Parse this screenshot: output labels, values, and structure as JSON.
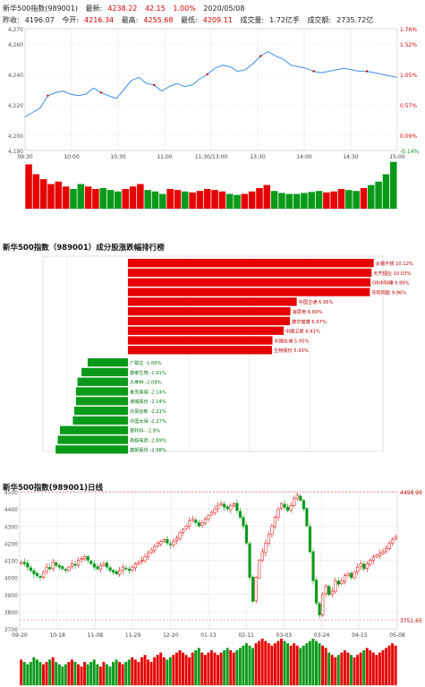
{
  "header": {
    "name": "新华500指数(989001)",
    "latest_label": "最新:",
    "latest_value": "4238.22",
    "change": "42.15",
    "change_pct": "1.00%",
    "date": "2020/05/08",
    "prev_close_label": "昨收:",
    "prev_close": "4196.07",
    "open_label": "今开:",
    "open": "4216.34",
    "high_label": "最高:",
    "high": "4255.68",
    "low_label": "最低:",
    "low": "4209.11",
    "volume_label": "成交量:",
    "volume": "1.72亿手",
    "turnover_label": "成交额:",
    "turnover": "2735.72亿"
  },
  "section_titles": {
    "ranking": "新华500指数（989001）成分股涨跌幅排行榜",
    "daily": "新华500指数(989001)日线"
  },
  "colors": {
    "up": "#e60000",
    "down": "#0a9a1a",
    "line": "#3a8ee6",
    "grid": "#e3e3e3"
  },
  "chart_data": [
    {
      "type": "line",
      "x_labels": [
        "09:30",
        "10:00",
        "10:30",
        "11:00",
        "11:30/13:00",
        "13:30",
        "14:00",
        "14:30",
        "15:00"
      ],
      "ylim": [
        4190,
        4270
      ],
      "y_ticks": [
        "4,270",
        "4,260",
        "4,240",
        "4,220",
        "4,200",
        "4,190"
      ],
      "right_ticks": [
        "1.76%",
        "1.52%",
        "1.05%",
        "0.57%",
        "0.09%",
        "-0.14%"
      ],
      "series": [
        {
          "values": [
            4212,
            4215,
            4218,
            4226,
            4228,
            4229,
            4227,
            4226,
            4227,
            4231,
            4228,
            4226,
            4224,
            4230,
            4236,
            4238,
            4234,
            4233,
            4229,
            4232,
            4234,
            4232,
            4233,
            4237,
            4240,
            4244,
            4246,
            4245,
            4242,
            4243,
            4247,
            4252,
            4255,
            4252,
            4250,
            4246,
            4245,
            4244,
            4242,
            4241,
            4242,
            4243,
            4244,
            4243,
            4242,
            4242,
            4241,
            4240,
            4239,
            4238
          ]
        }
      ],
      "volume": [
        0.9,
        0.7,
        0.6,
        0.5,
        0.55,
        0.45,
        0.4,
        0.5,
        0.45,
        0.4,
        0.42,
        0.38,
        0.35,
        0.4,
        0.45,
        0.5,
        0.38,
        0.35,
        0.3,
        0.4,
        0.38,
        0.35,
        0.33,
        0.36,
        0.4,
        0.38,
        0.35,
        0.3,
        0.28,
        0.3,
        0.35,
        0.42,
        0.48,
        0.36,
        0.32,
        0.3,
        0.3,
        0.32,
        0.34,
        0.36,
        0.33,
        0.35,
        0.4,
        0.38,
        0.36,
        0.42,
        0.48,
        0.55,
        0.7,
        0.95
      ]
    },
    {
      "type": "bar",
      "orientation": "horizontal",
      "gainers": [
        {
          "name": "太钢不锈",
          "pct": 10.12,
          "label": "太钢不锈 10.12%"
        },
        {
          "name": "天齐锂业",
          "pct": 10.03,
          "label": "天齐锂业 10.03%"
        },
        {
          "name": "OR中科曙",
          "pct": 9.99,
          "label": "OR中科曙 9.99%"
        },
        {
          "name": "东阿阿胶",
          "pct": 9.96,
          "label": "东阿阿胶 9.96%"
        },
        {
          "name": "中国卫通",
          "pct": 6.95,
          "label": "中国卫通 6.95%"
        },
        {
          "name": "海思电",
          "pct": 6.69,
          "label": "海思电 6.69%"
        },
        {
          "name": "康华健康",
          "pct": 6.67,
          "label": "康华健康 6.67%"
        },
        {
          "name": "中国卫星",
          "pct": 6.41,
          "label": "中国卫星 6.41%"
        },
        {
          "name": "中国长城",
          "pct": 5.95,
          "label": "中国长城 5.95%"
        },
        {
          "name": "生物股份",
          "pct": 5.93,
          "label": "生物股份 5.93%"
        }
      ],
      "losers": [
        {
          "name": "广联达",
          "pct": -1.66,
          "label": "广联达 -1.66%"
        },
        {
          "name": "康泰生物",
          "pct": -1.91,
          "label": "康泰生物 -1.91%"
        },
        {
          "name": "大参林",
          "pct": -2.08,
          "label": "大参林 -2.08%"
        },
        {
          "name": "麦克奥德",
          "pct": -2.14,
          "label": "麦克奥德 -2.14%"
        },
        {
          "name": "通威股份",
          "pct": -2.14,
          "label": "通威股份 -2.14%"
        },
        {
          "name": "兆易创新",
          "pct": -2.21,
          "label": "兆易创新 -2.21%"
        },
        {
          "name": "中国太保",
          "pct": -2.27,
          "label": "中国太保 -2.27%"
        },
        {
          "name": "普利科-",
          "pct": -2.8,
          "label": "普利科- -2.8%"
        },
        {
          "name": "南极电商",
          "pct": -2.89,
          "label": "南极电商 -2.89%"
        },
        {
          "name": "健帆股份",
          "pct": -2.98,
          "label": "健帆股份 -2.98%"
        }
      ],
      "xlim": [
        -3.5,
        10.5
      ]
    },
    {
      "type": "candlestick",
      "ylim": [
        3700,
        4500
      ],
      "y_ticks": [
        "4500",
        "4400",
        "4300",
        "4200",
        "4100",
        "4000",
        "3900",
        "3800",
        "3700"
      ],
      "x_labels": [
        "09-20",
        "10-18",
        "11-08",
        "11-29",
        "12-20",
        "01-13",
        "02-11",
        "03-03",
        "03-24",
        "04-15",
        "05-08"
      ],
      "max_label": "4498.99",
      "min_label": "3751.65",
      "closes": [
        4090,
        4080,
        4060,
        4040,
        4020,
        4010,
        4000,
        4030,
        4060,
        4050,
        4090,
        4070,
        4060,
        4050,
        4040,
        4060,
        4080,
        4070,
        4100,
        4110,
        4120,
        4100,
        4080,
        4060,
        4050,
        4070,
        4080,
        4060,
        4040,
        4030,
        4020,
        4040,
        4060,
        4050,
        4040,
        4060,
        4080,
        4090,
        4100,
        4120,
        4140,
        4160,
        4180,
        4200,
        4210,
        4220,
        4200,
        4190,
        4210,
        4230,
        4260,
        4280,
        4300,
        4330,
        4340,
        4320,
        4300,
        4320,
        4340,
        4360,
        4380,
        4400,
        4420,
        4430,
        4410,
        4400,
        4420,
        4430,
        4390,
        4350,
        4300,
        4200,
        4000,
        3860,
        4000,
        4100,
        4150,
        4200,
        4250,
        4300,
        4350,
        4400,
        4430,
        4410,
        4390,
        4420,
        4460,
        4480,
        4450,
        4400,
        4300,
        4150,
        3980,
        3850,
        3780,
        3900,
        3950,
        3900,
        3920,
        3980,
        3960,
        3980,
        4010,
        4020,
        4000,
        4030,
        4060,
        4080,
        4050,
        4080,
        4100,
        4120,
        4130,
        4140,
        4150,
        4170,
        4200,
        4220,
        4238
      ],
      "volume": [
        0.55,
        0.5,
        0.45,
        0.5,
        0.6,
        0.55,
        0.5,
        0.45,
        0.5,
        0.55,
        0.6,
        0.5,
        0.45,
        0.4,
        0.45,
        0.5,
        0.55,
        0.5,
        0.45,
        0.4,
        0.5,
        0.45,
        0.5,
        0.55,
        0.45,
        0.4,
        0.5,
        0.45,
        0.4,
        0.5,
        0.55,
        0.5,
        0.45,
        0.5,
        0.55,
        0.6,
        0.55,
        0.5,
        0.6,
        0.65,
        0.55,
        0.5,
        0.6,
        0.65,
        0.7,
        0.6,
        0.55,
        0.6,
        0.65,
        0.7,
        0.75,
        0.7,
        0.65,
        0.6,
        0.7,
        0.75,
        0.8,
        0.7,
        0.65,
        0.7,
        0.75,
        0.7,
        0.65,
        0.7,
        0.75,
        0.8,
        0.75,
        0.7,
        0.75,
        0.8,
        0.85,
        0.9,
        0.85,
        0.8,
        0.9,
        0.95,
        1.0,
        0.95,
        0.9,
        0.85,
        0.9,
        0.95,
        1.0,
        0.95,
        0.9,
        0.85,
        0.9,
        0.85,
        0.8,
        0.85,
        0.9,
        0.95,
        1.0,
        0.95,
        0.9,
        0.85,
        0.8,
        0.7,
        0.65,
        0.6,
        0.65,
        0.7,
        0.75,
        0.7,
        0.65,
        0.6,
        0.65,
        0.7,
        0.75,
        0.8,
        0.75,
        0.7,
        0.65,
        0.7,
        0.75,
        0.8,
        0.85,
        0.9,
        0.85
      ]
    }
  ]
}
